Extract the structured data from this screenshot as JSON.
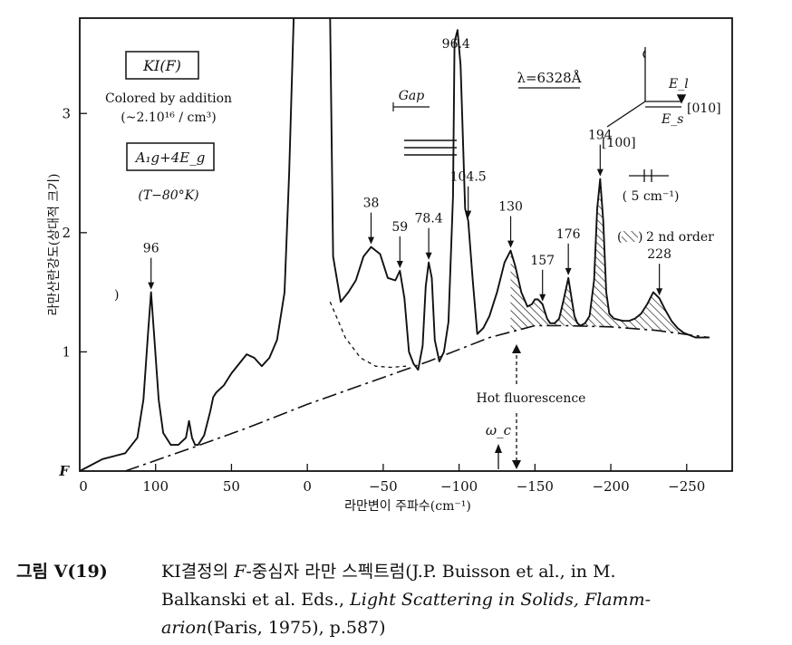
{
  "chart_data": {
    "type": "line",
    "title": "",
    "xlabel": "라만변이 주파수(cm⁻¹)",
    "ylabel": "라만산란강도(상대적 크기)",
    "xlim": [
      150,
      -280
    ],
    "ylim": [
      0,
      3.8
    ],
    "x_ticks": [
      {
        "value": 100,
        "label": "100"
      },
      {
        "value": 50,
        "label": "50"
      },
      {
        "value": 0,
        "label": "0"
      },
      {
        "value": -50,
        "label": "−50"
      },
      {
        "value": -100,
        "label": "−100"
      },
      {
        "value": -150,
        "label": "−150"
      },
      {
        "value": -200,
        "label": "−200"
      },
      {
        "value": -250,
        "label": "−250"
      }
    ],
    "x_origin_label": "0",
    "y_ticks": [
      {
        "value": 1,
        "label": "1"
      },
      {
        "value": 2,
        "label": "2"
      },
      {
        "value": 3,
        "label": "3"
      }
    ],
    "y_origin_label": "F",
    "series": [
      {
        "x": [
          150,
          135,
          120,
          112,
          108,
          105,
          103,
          101,
          98,
          95,
          90,
          85,
          80,
          78,
          76,
          74,
          72,
          68,
          64,
          62,
          60,
          55,
          50,
          45,
          40,
          35,
          30,
          25,
          20,
          15,
          12,
          9
        ],
        "y": [
          0.0,
          0.1,
          0.15,
          0.28,
          0.6,
          1.15,
          1.5,
          1.15,
          0.6,
          0.32,
          0.22,
          0.22,
          0.28,
          0.42,
          0.28,
          0.22,
          0.22,
          0.3,
          0.5,
          0.62,
          0.66,
          0.72,
          0.82,
          0.9,
          0.98,
          0.95,
          0.88,
          0.95,
          1.1,
          1.5,
          2.5,
          3.8
        ]
      },
      {
        "x": [
          -15,
          -17,
          -22,
          -27,
          -32,
          -37,
          -42,
          -48,
          -53,
          -58,
          -61,
          -64,
          -67,
          -70,
          -73,
          -76,
          -78,
          -80,
          -82,
          -84,
          -87,
          -90,
          -93,
          -96,
          -97,
          -99,
          -101,
          -104,
          -106,
          -109,
          -112,
          -116,
          -120,
          -125,
          -130,
          -134,
          -137,
          -141,
          -145,
          -148,
          -150,
          -152,
          -155,
          -158,
          -160,
          -163,
          -166,
          -169,
          -172,
          -174,
          -176,
          -178,
          -180,
          -183,
          -186,
          -189,
          -191,
          -193,
          -195,
          -197,
          -199,
          -202,
          -205,
          -208,
          -212,
          -216,
          -220,
          -224,
          -228,
          -232,
          -236,
          -240,
          -244,
          -248,
          -252,
          -256,
          -260,
          -265
        ],
        "y": [
          3.8,
          1.8,
          1.42,
          1.5,
          1.6,
          1.8,
          1.88,
          1.82,
          1.62,
          1.6,
          1.68,
          1.45,
          1.0,
          0.9,
          0.85,
          1.05,
          1.55,
          1.75,
          1.62,
          1.1,
          0.92,
          1.0,
          1.25,
          2.3,
          3.6,
          3.7,
          3.4,
          2.2,
          2.1,
          1.6,
          1.15,
          1.2,
          1.3,
          1.5,
          1.75,
          1.85,
          1.72,
          1.5,
          1.38,
          1.4,
          1.44,
          1.44,
          1.4,
          1.28,
          1.24,
          1.24,
          1.28,
          1.44,
          1.62,
          1.46,
          1.3,
          1.24,
          1.22,
          1.24,
          1.3,
          1.6,
          2.2,
          2.45,
          2.1,
          1.5,
          1.32,
          1.28,
          1.27,
          1.26,
          1.26,
          1.28,
          1.32,
          1.4,
          1.5,
          1.45,
          1.35,
          1.26,
          1.2,
          1.16,
          1.14,
          1.12,
          1.12,
          1.12
        ]
      }
    ],
    "background_line": {
      "x": [
        120,
        75,
        40,
        0,
        -40,
        -80,
        -120,
        -150,
        -170,
        -200,
        -230,
        -265
      ],
      "y": [
        0.0,
        0.2,
        0.36,
        0.56,
        0.74,
        0.92,
        1.12,
        1.22,
        1.22,
        1.21,
        1.18,
        1.12
      ]
    },
    "dashed_curve": {
      "x": [
        -15,
        -25,
        -35,
        -45,
        -55,
        -65
      ],
      "y": [
        1.42,
        1.12,
        0.95,
        0.88,
        0.87,
        0.88
      ]
    },
    "peak_labels": [
      {
        "label": "96",
        "x": 103,
        "y": 1.5
      },
      {
        "label": "38",
        "x": -42,
        "y": 1.88
      },
      {
        "label": "59",
        "x": -61,
        "y": 1.68
      },
      {
        "label": "78.4",
        "x": -80,
        "y": 1.75
      },
      {
        "label": "96.4",
        "x": -98,
        "y": 3.7
      },
      {
        "label": "104.5",
        "x": -106,
        "y": 2.1
      },
      {
        "label": "130",
        "x": -134,
        "y": 1.85
      },
      {
        "label": "157",
        "x": -155,
        "y": 1.4
      },
      {
        "label": "176",
        "x": -172,
        "y": 1.62
      },
      {
        "label": "194",
        "x": -193,
        "y": 2.45
      },
      {
        "label": "228",
        "x": -232,
        "y": 1.45
      }
    ],
    "annotations": {
      "sample": "KI(F)",
      "colored": "Colored by addition",
      "density": "(~2.10¹⁶ / cm³)",
      "symmetry": "A₁g+4E_g",
      "temperature": "(T−80°K)",
      "gap": "Gap",
      "wavelength": "λ=6328Å",
      "e_incident": "E_l",
      "e_scattered": "E_s",
      "dir_010": "[010]",
      "dir_100": "[100]",
      "resolution": "( 5 cm⁻¹)",
      "second_order": "2 nd order",
      "hot_fluorescence": "Hot fluorescence",
      "omega_c": "ω_c"
    },
    "grid": false,
    "legend": "none"
  },
  "caption": {
    "number": "그림 V(19)",
    "line1_a": "KI결정의 ",
    "line1_b": "F",
    "line1_c": "-중심자 라만 스펙트럼(J.P. Buisson et al., in M.",
    "line2_a": "Balkanski et al. Eds., ",
    "line2_b": "Light Scattering in Solids, Flamm-",
    "line3_a": "arion",
    "line3_b": "(Paris, 1975),  p.587)"
  }
}
